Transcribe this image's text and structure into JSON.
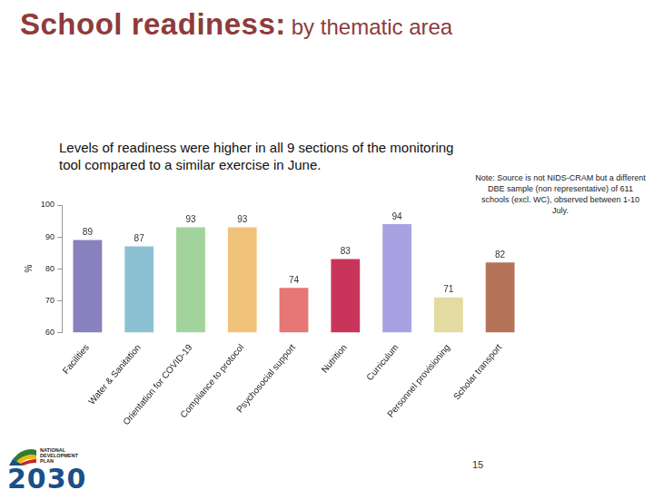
{
  "slide": {
    "title": "School readiness:",
    "title_suffix": "by thematic area",
    "subtitle": "Levels of readiness were higher in all 9 sections of the monitoring tool compared to a similar exercise in June.",
    "note": "Note: Source is not NIDS-CRAM but a different DBE sample (non representative) of 611 schools (excl. WC), observed between 1-10 July.",
    "page_number": 15,
    "logo": {
      "lines": [
        "NATIONAL",
        "DEVELOPMENT",
        "PLAN"
      ],
      "year": "2030"
    }
  },
  "chart_data": {
    "type": "bar",
    "categories": [
      "Facilities",
      "Water & Sanitation",
      "Orientation for COVID-19",
      "Compliance to protocol",
      "Psychosocial support",
      "Nutrition",
      "Curriculum",
      "Personnel provisioning",
      "Scholar transport"
    ],
    "values": [
      89,
      87,
      93,
      93,
      74,
      83,
      94,
      71,
      82
    ],
    "colors": [
      "#8781bd",
      "#8cc0d3",
      "#a3d39c",
      "#f1c27a",
      "#e77676",
      "#c9355a",
      "#a9a2e2",
      "#e3dba2",
      "#b5735a"
    ],
    "y_label": "%",
    "ylim": [
      60,
      100
    ],
    "yticks": [
      60,
      70,
      80,
      90,
      100
    ],
    "grid": false,
    "data_labels": true
  }
}
